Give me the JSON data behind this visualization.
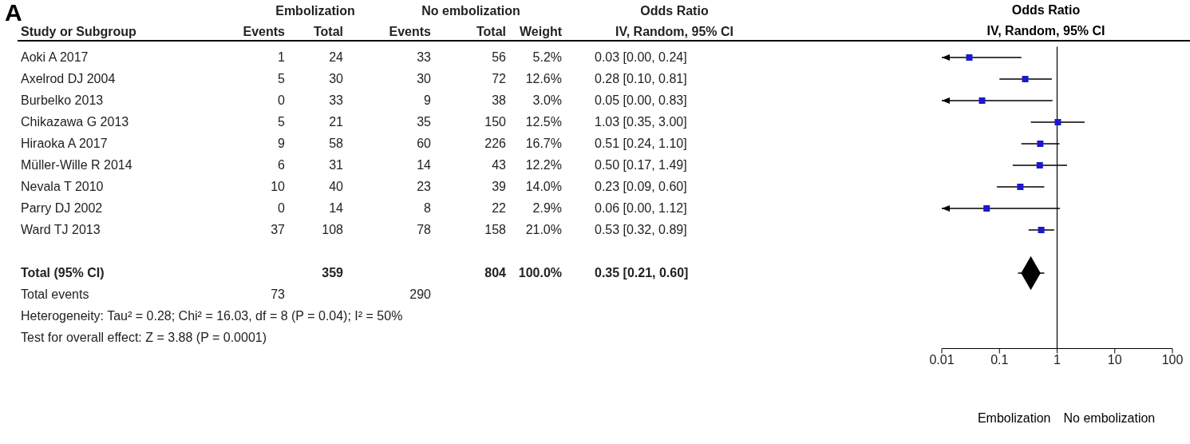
{
  "chart_data": [
    {
      "type": "other",
      "title": "A",
      "annotations": [
        "Embolization",
        "No embolization",
        "Odds Ratio",
        "Study or Subgroup",
        "Events",
        "Total",
        "Events",
        "Total",
        "Weight",
        "IV, Random, 95% CI",
        "Aoki A 2017",
        "1",
        "24",
        "33",
        "56",
        "5.2%",
        "0.03 [0.00, 0.24]",
        "Axelrod DJ 2004",
        "5",
        "30",
        "30",
        "72",
        "12.6%",
        "0.28 [0.10, 0.81]",
        "Burbelko 2013",
        "0",
        "33",
        "9",
        "38",
        "3.0%",
        "0.05 [0.00, 0.83]",
        "Chikazawa G 2013",
        "5",
        "21",
        "35",
        "150",
        "12.5%",
        "1.03 [0.35, 3.00]",
        "Hiraoka A 2017",
        "9",
        "58",
        "60",
        "226",
        "16.7%",
        "0.51 [0.24, 1.10]",
        "Müller-Wille R 2014",
        "6",
        "31",
        "14",
        "43",
        "12.2%",
        "0.50 [0.17, 1.49]",
        "Nevala T 2010",
        "10",
        "40",
        "23",
        "39",
        "14.0%",
        "0.23 [0.09, 0.60]",
        "Parry DJ 2002",
        "0",
        "14",
        "8",
        "22",
        "2.9%",
        "0.06 [0.00, 1.12]",
        "Ward TJ 2013",
        "37",
        "108",
        "78",
        "158",
        "21.0%",
        "0.53 [0.32, 0.89]",
        "Total (95% CI)",
        "359",
        "804",
        "100.0%",
        "0.35 [0.21, 0.60]",
        "Total events",
        "73",
        "290",
        "Heterogeneity: Tau² = 0.28; Chi² = 16.03, df = 8 (P = 0.04); I² = 50%",
        "Test for overall effect: Z = 3.88 (P = 0.0001)"
      ]
    },
    {
      "type": "scatter",
      "title": "Odds Ratio",
      "subtitle": "IV, Random, 95% CI",
      "categories": [
        null,
        null,
        null,
        null,
        null,
        null,
        null,
        null,
        null,
        null,
        null,
        null,
        null,
        null
      ],
      "series": [
        {
          "color": "#1a1acc",
          "marker": "square",
          "values": [
            0.03,
            0.28,
            0.05,
            1.03,
            0.51,
            0.5,
            0.23,
            0.06,
            0.53,
            null,
            null,
            null,
            null,
            null
          ],
          "errors": [
            [
              0.01,
              0.24
            ],
            [
              0.1,
              0.81
            ],
            [
              0.01,
              0.83
            ],
            [
              0.35,
              3.0
            ],
            [
              0.24,
              1.1
            ],
            [
              0.17,
              1.49
            ],
            [
              0.09,
              0.6
            ],
            [
              0.01,
              1.12
            ],
            [
              0.32,
              0.89
            ],
            null,
            null,
            null,
            null,
            null
          ]
        },
        {
          "color": "#000000",
          "marker": "diamond",
          "values": [
            null,
            null,
            null,
            null,
            null,
            null,
            null,
            null,
            null,
            null,
            0.35,
            null,
            null,
            null
          ],
          "errors": [
            null,
            null,
            null,
            null,
            null,
            null,
            null,
            null,
            null,
            null,
            [
              0.21,
              0.6
            ],
            null,
            null,
            null
          ]
        }
      ],
      "orientation": "horizontal",
      "log": "x",
      "xlim": [
        0.01,
        100
      ],
      "xticks": [
        0.01,
        0.1,
        1,
        10,
        100
      ],
      "tick_labels": "x",
      "ref_lines": [
        {
          "axis": "x",
          "value": 1,
          "color": "#000000"
        }
      ],
      "annotations": [
        "Embolization",
        "No embolization"
      ]
    }
  ]
}
